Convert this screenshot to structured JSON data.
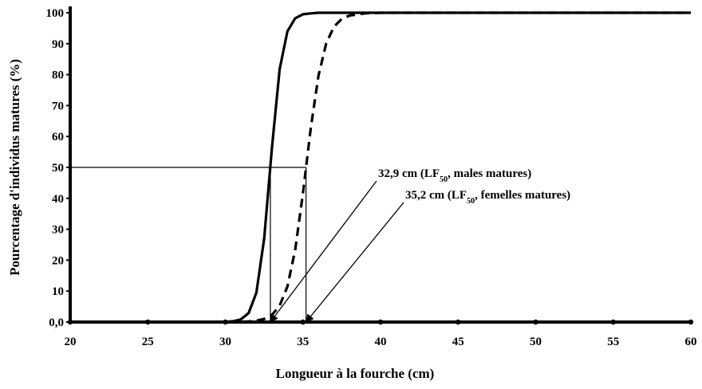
{
  "chart_data": {
    "type": "line",
    "xlabel": "Longueur à la fourche (cm)",
    "ylabel": "Pourcentage d'individus matures (%)",
    "x": [
      20,
      29,
      30,
      30.5,
      31,
      31.5,
      32,
      32.5,
      33,
      33.5,
      34,
      34.5,
      35,
      35.5,
      36,
      36.5,
      37,
      37.5,
      38,
      39,
      40,
      60
    ],
    "series": [
      {
        "color": "#000000",
        "dash": "solid",
        "values": [
          0,
          0,
          0.07,
          0.25,
          0.86,
          2.9,
          9.5,
          26.9,
          56.2,
          81.8,
          94.0,
          98.2,
          99.5,
          99.8,
          100,
          100,
          100,
          100,
          100,
          100,
          100,
          100
        ]
      },
      {
        "color": "#000000",
        "dash": "dashed",
        "values": [
          0,
          0,
          0.01,
          0.03,
          0.08,
          0.19,
          0.43,
          1.0,
          2.3,
          5.3,
          11.5,
          23.3,
          41.6,
          62.5,
          79.6,
          90.1,
          95.5,
          98.0,
          99.1,
          99.8,
          100,
          100
        ]
      }
    ],
    "xlim": [
      20,
      60
    ],
    "ylim": [
      0,
      100
    ],
    "xticks": [
      20,
      25,
      30,
      35,
      40,
      45,
      50,
      55,
      60
    ],
    "yticks": [
      {
        "value": 0,
        "label": "0,0"
      },
      10,
      20,
      30,
      40,
      50,
      60,
      70,
      80,
      90,
      100
    ],
    "reference_y": 50,
    "annotations": [
      {
        "x": 32.9,
        "text": [
          "32,9 cm (LF",
          "50",
          ", males matures)"
        ]
      },
      {
        "x": 35.2,
        "text": [
          "35,2 cm (LF",
          "50",
          ", femelles matures)"
        ]
      }
    ]
  }
}
